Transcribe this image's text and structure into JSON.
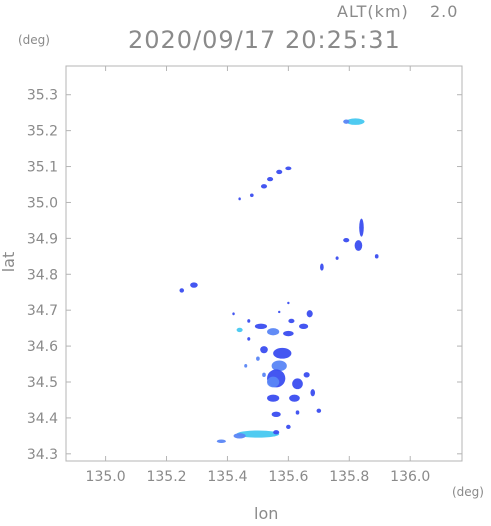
{
  "header": {
    "altitude_label": "ALT(km)",
    "altitude_value": "2.0",
    "timestamp": "2020/09/17 20:25:31"
  },
  "chart_data": {
    "type": "scatter",
    "xlabel": "lon",
    "ylabel": "lat",
    "x_unit": "(deg)",
    "y_unit": "(deg)",
    "xlim": [
      134.87,
      136.17
    ],
    "ylim": [
      34.28,
      35.38
    ],
    "x_ticks": [
      "135.0",
      "135.2",
      "135.4",
      "135.6",
      "135.8",
      "136.0"
    ],
    "y_ticks": [
      "34.3",
      "34.4",
      "34.5",
      "34.6",
      "34.7",
      "34.8",
      "34.9",
      "35.0",
      "35.1",
      "35.2",
      "35.3"
    ],
    "grid": false,
    "colors": {
      "frame": "#b4b4b4",
      "label": "#8a8a8a",
      "echo_dark": "#3a4df0",
      "echo_mid": "#5a86f5",
      "echo_light": "#46c8f0"
    },
    "clusters": [
      {
        "x": 135.82,
        "y": 35.225,
        "w": 0.06,
        "h": 0.018,
        "level": "light"
      },
      {
        "x": 135.79,
        "y": 35.225,
        "w": 0.02,
        "h": 0.012,
        "level": "mid"
      },
      {
        "x": 135.6,
        "y": 35.095,
        "w": 0.02,
        "h": 0.01,
        "level": "dark"
      },
      {
        "x": 135.57,
        "y": 35.085,
        "w": 0.02,
        "h": 0.012,
        "level": "dark"
      },
      {
        "x": 135.54,
        "y": 35.065,
        "w": 0.02,
        "h": 0.012,
        "level": "dark"
      },
      {
        "x": 135.52,
        "y": 35.045,
        "w": 0.02,
        "h": 0.012,
        "level": "dark"
      },
      {
        "x": 135.48,
        "y": 35.02,
        "w": 0.012,
        "h": 0.01,
        "level": "dark"
      },
      {
        "x": 135.44,
        "y": 35.01,
        "w": 0.008,
        "h": 0.008,
        "level": "dark"
      },
      {
        "x": 135.84,
        "y": 34.93,
        "w": 0.015,
        "h": 0.05,
        "level": "dark"
      },
      {
        "x": 135.83,
        "y": 34.88,
        "w": 0.025,
        "h": 0.03,
        "level": "dark"
      },
      {
        "x": 135.79,
        "y": 34.895,
        "w": 0.02,
        "h": 0.012,
        "level": "dark"
      },
      {
        "x": 135.89,
        "y": 34.85,
        "w": 0.012,
        "h": 0.012,
        "level": "dark"
      },
      {
        "x": 135.71,
        "y": 34.82,
        "w": 0.012,
        "h": 0.02,
        "level": "dark"
      },
      {
        "x": 135.76,
        "y": 34.845,
        "w": 0.01,
        "h": 0.01,
        "level": "dark"
      },
      {
        "x": 135.29,
        "y": 34.77,
        "w": 0.025,
        "h": 0.015,
        "level": "dark"
      },
      {
        "x": 135.25,
        "y": 34.755,
        "w": 0.015,
        "h": 0.012,
        "level": "dark"
      },
      {
        "x": 135.51,
        "y": 34.655,
        "w": 0.04,
        "h": 0.015,
        "level": "dark"
      },
      {
        "x": 135.55,
        "y": 34.64,
        "w": 0.04,
        "h": 0.02,
        "level": "mid"
      },
      {
        "x": 135.6,
        "y": 34.635,
        "w": 0.035,
        "h": 0.015,
        "level": "dark"
      },
      {
        "x": 135.65,
        "y": 34.655,
        "w": 0.03,
        "h": 0.015,
        "level": "dark"
      },
      {
        "x": 135.67,
        "y": 34.69,
        "w": 0.02,
        "h": 0.02,
        "level": "dark"
      },
      {
        "x": 135.61,
        "y": 34.67,
        "w": 0.02,
        "h": 0.012,
        "level": "dark"
      },
      {
        "x": 135.58,
        "y": 34.58,
        "w": 0.06,
        "h": 0.03,
        "level": "dark"
      },
      {
        "x": 135.52,
        "y": 34.59,
        "w": 0.025,
        "h": 0.02,
        "level": "dark"
      },
      {
        "x": 135.5,
        "y": 34.565,
        "w": 0.012,
        "h": 0.012,
        "level": "mid"
      },
      {
        "x": 135.57,
        "y": 34.545,
        "w": 0.05,
        "h": 0.03,
        "level": "mid"
      },
      {
        "x": 135.56,
        "y": 34.51,
        "w": 0.06,
        "h": 0.05,
        "level": "dark"
      },
      {
        "x": 135.55,
        "y": 34.5,
        "w": 0.04,
        "h": 0.03,
        "level": "mid"
      },
      {
        "x": 135.63,
        "y": 34.495,
        "w": 0.035,
        "h": 0.03,
        "level": "dark"
      },
      {
        "x": 135.66,
        "y": 34.52,
        "w": 0.02,
        "h": 0.015,
        "level": "dark"
      },
      {
        "x": 135.55,
        "y": 34.455,
        "w": 0.04,
        "h": 0.02,
        "level": "dark"
      },
      {
        "x": 135.62,
        "y": 34.455,
        "w": 0.035,
        "h": 0.02,
        "level": "dark"
      },
      {
        "x": 135.68,
        "y": 34.47,
        "w": 0.015,
        "h": 0.02,
        "level": "dark"
      },
      {
        "x": 135.56,
        "y": 34.41,
        "w": 0.03,
        "h": 0.015,
        "level": "dark"
      },
      {
        "x": 135.63,
        "y": 34.415,
        "w": 0.012,
        "h": 0.012,
        "level": "dark"
      },
      {
        "x": 135.7,
        "y": 34.42,
        "w": 0.015,
        "h": 0.012,
        "level": "dark"
      },
      {
        "x": 135.6,
        "y": 34.375,
        "w": 0.015,
        "h": 0.012,
        "level": "dark"
      },
      {
        "x": 135.5,
        "y": 34.355,
        "w": 0.14,
        "h": 0.02,
        "level": "light"
      },
      {
        "x": 135.44,
        "y": 34.35,
        "w": 0.04,
        "h": 0.015,
        "level": "mid"
      },
      {
        "x": 135.38,
        "y": 34.335,
        "w": 0.03,
        "h": 0.01,
        "level": "mid"
      },
      {
        "x": 135.56,
        "y": 34.36,
        "w": 0.02,
        "h": 0.012,
        "level": "dark"
      },
      {
        "x": 135.47,
        "y": 34.62,
        "w": 0.01,
        "h": 0.01,
        "level": "dark"
      },
      {
        "x": 135.47,
        "y": 34.67,
        "w": 0.01,
        "h": 0.01,
        "level": "dark"
      },
      {
        "x": 135.42,
        "y": 34.69,
        "w": 0.008,
        "h": 0.008,
        "level": "dark"
      },
      {
        "x": 135.44,
        "y": 34.645,
        "w": 0.02,
        "h": 0.012,
        "level": "light"
      },
      {
        "x": 135.46,
        "y": 34.545,
        "w": 0.01,
        "h": 0.01,
        "level": "mid"
      },
      {
        "x": 135.52,
        "y": 34.52,
        "w": 0.012,
        "h": 0.012,
        "level": "mid"
      },
      {
        "x": 135.57,
        "y": 34.695,
        "w": 0.006,
        "h": 0.006,
        "level": "dark"
      },
      {
        "x": 135.6,
        "y": 34.72,
        "w": 0.006,
        "h": 0.006,
        "level": "dark"
      }
    ]
  }
}
